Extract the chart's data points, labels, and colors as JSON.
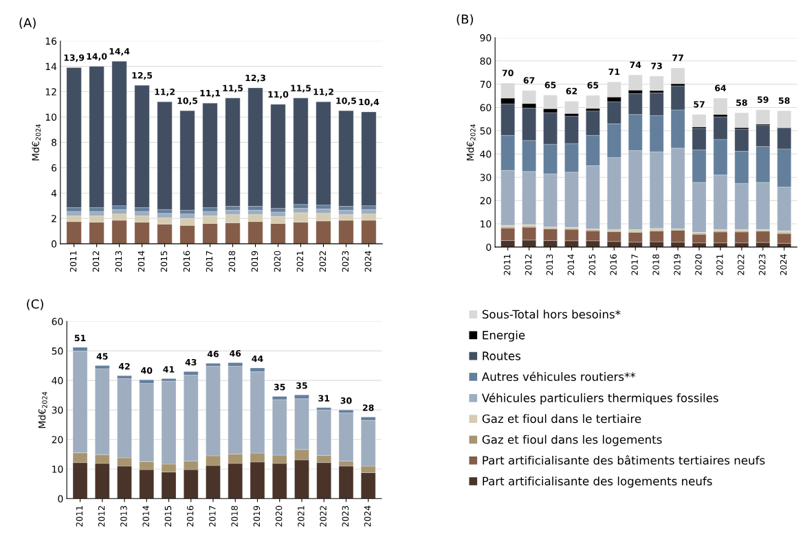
{
  "chart_data": [
    {
      "type": "bar",
      "title": "(A)",
      "ylabel": "Md€$_{2024}$",
      "stacked": true,
      "grid": "y",
      "ylim": [
        0,
        16
      ],
      "yticks": [
        0,
        2,
        4,
        6,
        8,
        10,
        12,
        14,
        16
      ],
      "categories": [
        "2011",
        "2012",
        "2013",
        "2014",
        "2015",
        "2016",
        "2017",
        "2018",
        "2019",
        "2020",
        "2021",
        "2022",
        "2023",
        "2024"
      ],
      "series": [
        {
          "color": "#845c48",
          "values": [
            1.75,
            1.7,
            1.85,
            1.7,
            1.55,
            1.45,
            1.6,
            1.65,
            1.75,
            1.6,
            1.7,
            1.8,
            1.85,
            1.85
          ]
        },
        {
          "color": "#d6ccb2",
          "values": [
            0.45,
            0.5,
            0.5,
            0.5,
            0.5,
            0.55,
            0.6,
            0.65,
            0.55,
            0.55,
            0.75,
            0.6,
            0.45,
            0.5
          ]
        },
        {
          "color": "#9eaec0",
          "values": [
            0.35,
            0.35,
            0.35,
            0.35,
            0.35,
            0.35,
            0.35,
            0.35,
            0.35,
            0.35,
            0.35,
            0.35,
            0.35,
            0.35
          ]
        },
        {
          "color": "#637f9c",
          "values": [
            0.3,
            0.3,
            0.3,
            0.3,
            0.3,
            0.3,
            0.3,
            0.3,
            0.3,
            0.3,
            0.3,
            0.3,
            0.3,
            0.3
          ]
        },
        {
          "color": "#424f63",
          "values": [
            11.05,
            11.15,
            11.4,
            9.65,
            8.5,
            7.85,
            8.25,
            8.55,
            9.35,
            8.2,
            8.4,
            8.15,
            7.55,
            7.4
          ]
        }
      ],
      "totals": [
        "13,9",
        "14,0",
        "14,4",
        "12,5",
        "11,2",
        "10,5",
        "11,1",
        "11,5",
        "12,3",
        "11,0",
        "11,5",
        "11,2",
        "10,5",
        "10,4"
      ]
    },
    {
      "type": "bar",
      "title": "(B)",
      "ylabel": "Md€$_{2024}$",
      "stacked": true,
      "grid": "y",
      "ylim": [
        0,
        90
      ],
      "yticks": [
        0,
        10,
        20,
        30,
        40,
        50,
        60,
        70,
        80,
        90
      ],
      "legend": "bottom",
      "categories": [
        "2011",
        "2012",
        "2013",
        "2014",
        "2015",
        "2016",
        "2017",
        "2018",
        "2019",
        "2020",
        "2021",
        "2022",
        "2023",
        "2024"
      ],
      "series": [
        {
          "name": "Part artificialisante des logements neufs",
          "color": "#4a3328",
          "values": [
            2.8,
            3.0,
            2.8,
            2.7,
            2.7,
            2.4,
            2.1,
            2.3,
            2.1,
            1.8,
            1.8,
            1.8,
            2.0,
            1.6
          ]
        },
        {
          "name": "Part artificialisante des bâtiments tertiaires neufs",
          "color": "#845c48",
          "values": [
            5.4,
            5.5,
            5.0,
            4.9,
            4.3,
            4.2,
            4.2,
            4.6,
            5.1,
            3.7,
            4.7,
            4.7,
            4.8,
            4.2
          ]
        },
        {
          "name": "Gaz et fioul dans les logements",
          "color": "#a89570",
          "values": [
            0.4,
            0.4,
            0.4,
            0.4,
            0.4,
            0.4,
            0.4,
            0.4,
            0.4,
            0.4,
            0.4,
            0.4,
            0.4,
            0.4
          ]
        },
        {
          "name": "Gaz et fioul dans le tertiaire",
          "color": "#d6ccb2",
          "values": [
            0.8,
            0.8,
            0.5,
            0.5,
            0.4,
            0.6,
            0.8,
            0.7,
            0.3,
            0.4,
            0.7,
            0.7,
            0.4,
            0.8
          ]
        },
        {
          "name": "Véhicules particuliers thermiques fossiles",
          "color": "#9eaec0",
          "values": [
            23.6,
            22.8,
            22.8,
            23.7,
            27.2,
            30.9,
            34,
            33,
            34.6,
            21.5,
            23.4,
            19.8,
            20.2,
            18.8
          ]
        },
        {
          "name": "Autres véhicules routiers**",
          "color": "#637f9c",
          "values": [
            15,
            13.3,
            12.7,
            12.3,
            13,
            14.5,
            15.5,
            15.5,
            16.5,
            14,
            15.3,
            13.8,
            15.4,
            16.4
          ]
        },
        {
          "name": "Routes",
          "color": "#424f63",
          "values": [
            13.5,
            13.9,
            13.6,
            11.8,
            10.5,
            9.5,
            9,
            9.8,
            10.3,
            9.2,
            9.7,
            9.5,
            9.1,
            9.1
          ]
        },
        {
          "name": "Energie",
          "color": "#000000",
          "values": [
            2.5,
            2.0,
            1.7,
            1.1,
            1.1,
            2.0,
            1.5,
            1.0,
            0.9,
            0.6,
            1.0,
            0.6,
            0.5,
            0.1
          ]
        },
        {
          "name": "Sous-Total hors besoins*",
          "color": "#d9d9d9",
          "values": [
            6.5,
            5.6,
            5.8,
            5.3,
            5.6,
            6.5,
            6.5,
            6.2,
            6.8,
            5.4,
            7,
            6.4,
            6.2,
            7.2
          ]
        }
      ],
      "totals": [
        "70",
        "67",
        "65",
        "62",
        "65",
        "71",
        "74",
        "73",
        "77",
        "57",
        "64",
        "58",
        "59",
        "58"
      ]
    },
    {
      "type": "bar",
      "title": "(C)",
      "ylabel": "Md€$_{2024}$",
      "stacked": true,
      "grid": "y",
      "ylim": [
        0,
        60
      ],
      "yticks": [
        0,
        10,
        20,
        30,
        40,
        50,
        60
      ],
      "categories": [
        "2011",
        "2012",
        "2013",
        "2014",
        "2015",
        "2016",
        "2017",
        "2018",
        "2019",
        "2020",
        "2021",
        "2022",
        "2023",
        "2024"
      ],
      "series": [
        {
          "color": "#4a3328",
          "values": [
            12.2,
            11.9,
            11.0,
            9.8,
            9.0,
            9.8,
            11.2,
            11.9,
            12.4,
            11.9,
            13.1,
            12.2,
            11.0,
            8.8
          ]
        },
        {
          "color": "#a89570",
          "values": [
            3.3,
            3.0,
            2.8,
            2.7,
            2.7,
            2.9,
            3.3,
            3.2,
            3.0,
            2.8,
            3.5,
            2.4,
            1.7,
            2.2
          ]
        },
        {
          "color": "#9eaec0",
          "values": [
            34.5,
            29.1,
            26.8,
            26.5,
            28.1,
            29.1,
            30.3,
            29.7,
            27.6,
            18.8,
            17.2,
            15.4,
            16.3,
            15.5
          ]
        },
        {
          "color": "#637f9c",
          "values": [
            1.2,
            1.0,
            1.0,
            1.2,
            0.8,
            1.2,
            1.0,
            1.2,
            1.2,
            1.1,
            1.3,
            0.8,
            1.0,
            1.1
          ]
        }
      ],
      "totals": [
        "51",
        "45",
        "42",
        "40",
        "41",
        "43",
        "46",
        "46",
        "44",
        "35",
        "35",
        "31",
        "30",
        "28"
      ]
    }
  ]
}
